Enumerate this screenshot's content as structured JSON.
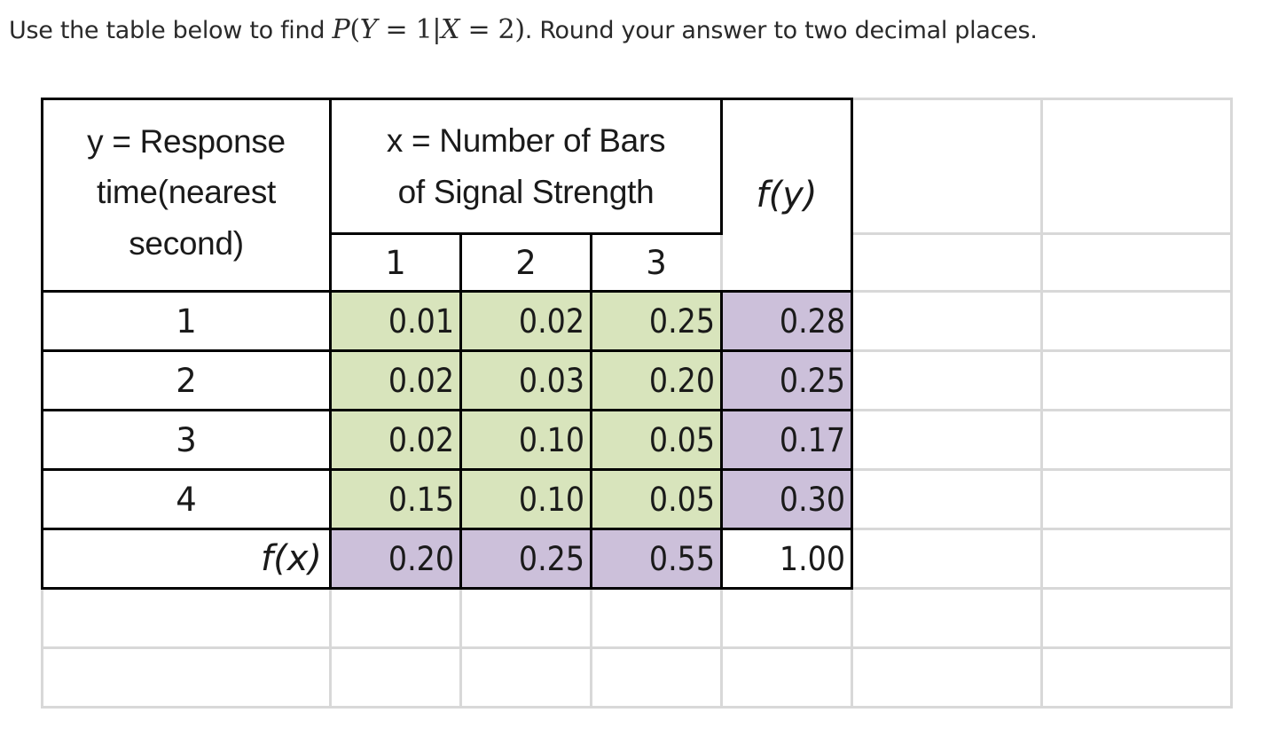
{
  "question": {
    "prefix": "Use the table below to find ",
    "math_p": "P",
    "math_open": "(",
    "math_y": "Y",
    "math_eq1": " = 1|",
    "math_x": "X",
    "math_eq2": " = 2)",
    "suffix": ". Round your answer to  two decimal places."
  },
  "table": {
    "y_header_line1": "y =  Response",
    "y_header_line2": "time(nearest",
    "y_header_line3": "second)",
    "x_header_line1": "x =  Number of Bars",
    "x_header_line2": "of Signal Strength",
    "fy_label": "f(y)",
    "fx_label": "f(x)",
    "x_values": [
      "1",
      "2",
      "3"
    ],
    "rows": [
      {
        "y": "1",
        "cells": [
          "0.01",
          "0.02",
          "0.25"
        ],
        "fy": "0.28"
      },
      {
        "y": "2",
        "cells": [
          "0.02",
          "0.03",
          "0.20"
        ],
        "fy": "0.25"
      },
      {
        "y": "3",
        "cells": [
          "0.02",
          "0.10",
          "0.05"
        ],
        "fy": "0.17"
      },
      {
        "y": "4",
        "cells": [
          "0.15",
          "0.10",
          "0.05"
        ],
        "fy": "0.30"
      }
    ],
    "fx_row": [
      "0.20",
      "0.25",
      "0.55"
    ],
    "total": "1.00"
  },
  "colors": {
    "joint_cells": "#d8e4bc",
    "marginal_cells": "#ccc0da"
  }
}
